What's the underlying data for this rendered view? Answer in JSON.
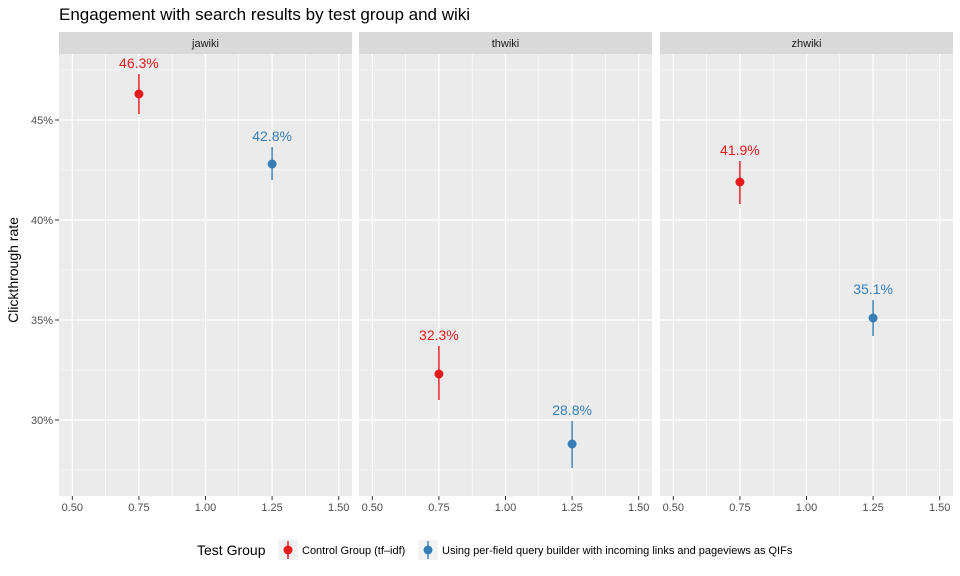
{
  "chart_data": {
    "type": "scatter",
    "title": "Engagement with search results by test group and wiki",
    "ylabel": "Clickthrough rate",
    "xlabel": "",
    "xlim": [
      0.45,
      1.55
    ],
    "ylim": [
      26.2,
      48.3
    ],
    "x_ticks": [
      0.5,
      0.75,
      1.0,
      1.25,
      1.5
    ],
    "x_tick_labels": [
      "0.50",
      "0.75",
      "1.00",
      "1.25",
      "1.50"
    ],
    "y_ticks": [
      30,
      35,
      40,
      45
    ],
    "y_tick_labels": [
      "30%",
      "35%",
      "40%",
      "45%"
    ],
    "y_minor_ticks": [
      27.5,
      32.5,
      37.5,
      42.5,
      47.5
    ],
    "grid": true,
    "facets": [
      "jawiki",
      "thwiki",
      "zhwiki"
    ],
    "series": [
      {
        "name": "Control Group (tf–idf)",
        "color": "#e41a1c",
        "x": 0.75,
        "points": [
          {
            "facet": "jawiki",
            "value": 46.3,
            "low": 45.3,
            "high": 47.3,
            "label": "46.3%"
          },
          {
            "facet": "thwiki",
            "value": 32.3,
            "low": 31.0,
            "high": 33.7,
            "label": "32.3%"
          },
          {
            "facet": "zhwiki",
            "value": 41.9,
            "low": 40.8,
            "high": 42.95,
            "label": "41.9%"
          }
        ]
      },
      {
        "name": "Using per-field query builder with incoming links and pageviews as QIFs",
        "color": "#377eb8",
        "x": 1.25,
        "points": [
          {
            "facet": "jawiki",
            "value": 42.8,
            "low": 42.0,
            "high": 43.65,
            "label": "42.8%"
          },
          {
            "facet": "thwiki",
            "value": 28.8,
            "low": 27.6,
            "high": 29.95,
            "label": "28.8%"
          },
          {
            "facet": "zhwiki",
            "value": 35.1,
            "low": 34.2,
            "high": 36.0,
            "label": "35.1%"
          }
        ]
      }
    ],
    "legend": {
      "title": "Test Group",
      "position": "bottom"
    }
  }
}
